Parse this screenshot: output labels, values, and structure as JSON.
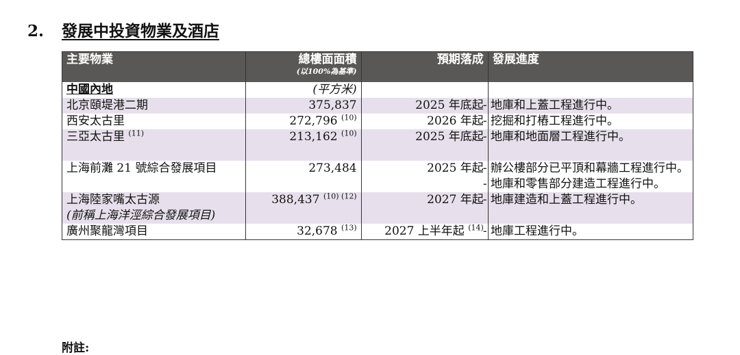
{
  "section": {
    "number": "2.",
    "title": "發展中投資物業及酒店"
  },
  "table": {
    "headers": {
      "property": "主要物業",
      "gfa": "總樓面面積",
      "gfa_basis": "(以100%為基準)",
      "completion": "預期落成",
      "progress": "發展進度"
    },
    "region": {
      "label": "中國內地",
      "unit": "(平方米)"
    },
    "rows": [
      {
        "name": "北京頤堤港二期",
        "name2": "",
        "gfa": "375,837",
        "gfa_note": "",
        "completion": "2025 年底起",
        "completion_note": "",
        "progress": [
          "- 地庫和上蓋工程進行中。"
        ]
      },
      {
        "name": "西安太古里",
        "name2": "",
        "gfa": "272,796",
        "gfa_note": "(10)",
        "completion": "2026 年起",
        "completion_note": "",
        "progress": [
          "- 挖掘和打樁工程進行中。"
        ]
      },
      {
        "name": "三亞太古里",
        "name_note": "(11)",
        "name2": "",
        "gfa": "213,162",
        "gfa_note": "(10)",
        "completion": "2025 年底起",
        "completion_note": "",
        "progress": [
          "- 地庫和地面層工程進行中。"
        ]
      },
      {
        "name": "上海前灘 21 號綜合發展項目",
        "name2": "",
        "gfa": "273,484",
        "gfa_note": "",
        "completion": "2025 年起",
        "completion_note": "",
        "progress": [
          "- 辦公樓部分已平頂和幕牆工程進行中。",
          "- 地庫和零售部分建造工程進行中。"
        ]
      },
      {
        "name": "上海陸家嘴太古源",
        "name2": "(前稱上海洋涇綜合發展項目)",
        "gfa": "388,437",
        "gfa_note": "(10) (12)",
        "completion": "2027 年起",
        "completion_note": "",
        "progress": [
          "- 地庫建造和上蓋工程進行中。"
        ]
      },
      {
        "name": "廣州聚龍灣項目",
        "name2": "",
        "gfa": "32,678",
        "gfa_note": "(13)",
        "completion": "2027 上半年起",
        "completion_note": "(14)",
        "progress": [
          "- 地庫工程進行中。"
        ]
      }
    ]
  },
  "notes_label": "附註:"
}
